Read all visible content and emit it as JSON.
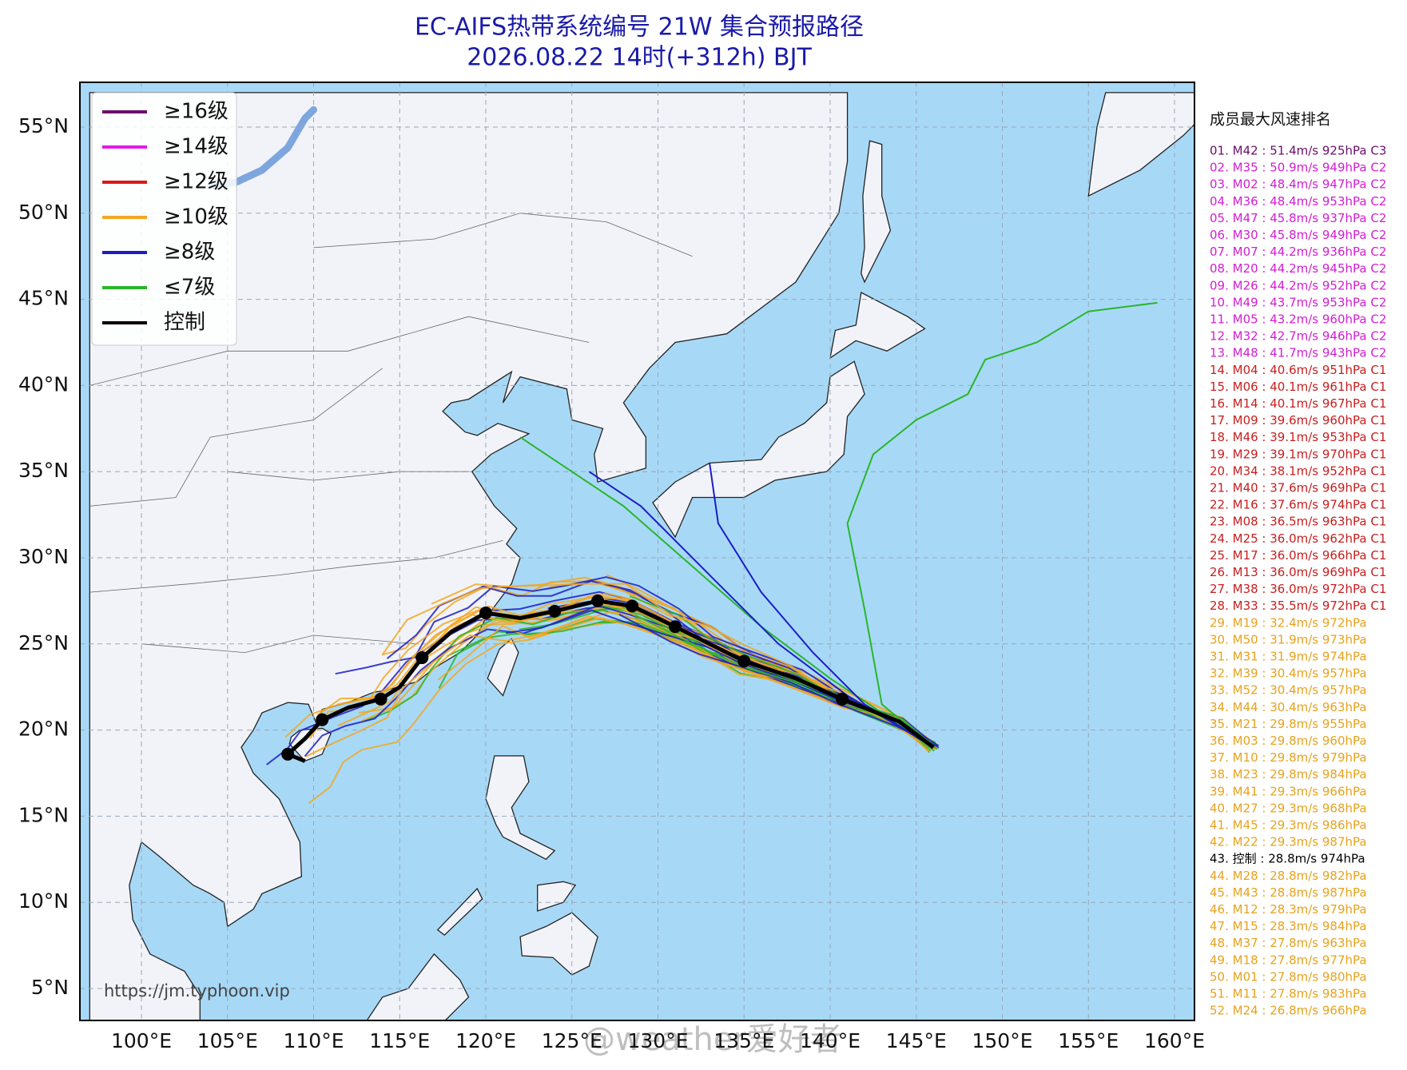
{
  "title": "EC-AIFS热带系统编号 21W 集合预报路径",
  "subtitle": "2026.08.22 14时(+312h) BJT",
  "map": {
    "lat_ticks": [
      {
        "value": 55,
        "label": "55°N"
      },
      {
        "value": 50,
        "label": "50°N"
      },
      {
        "value": 45,
        "label": "45°N"
      },
      {
        "value": 40,
        "label": "40°N"
      },
      {
        "value": 35,
        "label": "35°N"
      },
      {
        "value": 30,
        "label": "30°N"
      },
      {
        "value": 25,
        "label": "25°N"
      },
      {
        "value": 20,
        "label": "20°N"
      },
      {
        "value": 15,
        "label": "15°N"
      },
      {
        "value": 10,
        "label": "10°N"
      },
      {
        "value": 5,
        "label": "5°N"
      }
    ],
    "lon_ticks": [
      {
        "value": 100,
        "label": "100°E"
      },
      {
        "value": 105,
        "label": "105°E"
      },
      {
        "value": 110,
        "label": "110°E"
      },
      {
        "value": 115,
        "label": "115°E"
      },
      {
        "value": 120,
        "label": "120°E"
      },
      {
        "value": 125,
        "label": "125°E"
      },
      {
        "value": 130,
        "label": "130°E"
      },
      {
        "value": 135,
        "label": "135°E"
      },
      {
        "value": 140,
        "label": "140°E"
      },
      {
        "value": 145,
        "label": "145°E"
      },
      {
        "value": 150,
        "label": "150°E"
      },
      {
        "value": 155,
        "label": "155°E"
      },
      {
        "value": 160,
        "label": "160°E"
      }
    ],
    "source": "https://jm.typhoon.vip",
    "watermark": "@weather爱好者"
  },
  "legend": [
    {
      "label": "≥16级",
      "color": "#6b0f6b"
    },
    {
      "label": "≥14级",
      "color": "#e619e6"
    },
    {
      "label": "≥12级",
      "color": "#d81a1a"
    },
    {
      "label": "≥10级",
      "color": "#f2a722"
    },
    {
      "label": "≥8级",
      "color": "#1c1cc8"
    },
    {
      "label": "≤7级",
      "color": "#2ab52a"
    },
    {
      "label": "控制",
      "color": "#000000"
    }
  ],
  "ranking": {
    "title": "成员最大风速排名",
    "items": [
      {
        "text": "01. M42 : 51.4m/s 925hPa C3",
        "color": "#6b0f6b"
      },
      {
        "text": "02. M35 : 50.9m/s 949hPa C2",
        "color": "#d21ed2"
      },
      {
        "text": "03. M02 : 48.4m/s 947hPa C2",
        "color": "#d21ed2"
      },
      {
        "text": "04. M36 : 48.4m/s 953hPa C2",
        "color": "#d21ed2"
      },
      {
        "text": "05. M47 : 45.8m/s 937hPa C2",
        "color": "#d21ed2"
      },
      {
        "text": "06. M30 : 45.8m/s 949hPa C2",
        "color": "#d21ed2"
      },
      {
        "text": "07. M07 : 44.2m/s 936hPa C2",
        "color": "#d21ed2"
      },
      {
        "text": "08. M20 : 44.2m/s 945hPa C2",
        "color": "#d21ed2"
      },
      {
        "text": "09. M26 : 44.2m/s 952hPa C2",
        "color": "#d21ed2"
      },
      {
        "text": "10. M49 : 43.7m/s 953hPa C2",
        "color": "#d21ed2"
      },
      {
        "text": "11. M05 : 43.2m/s 960hPa C2",
        "color": "#d21ed2"
      },
      {
        "text": "12. M32 : 42.7m/s 946hPa C2",
        "color": "#d21ed2"
      },
      {
        "text": "13. M48 : 41.7m/s 943hPa C2",
        "color": "#d21ed2"
      },
      {
        "text": "14. M04 : 40.6m/s 951hPa C1",
        "color": "#c81e1e"
      },
      {
        "text": "15. M06 : 40.1m/s 961hPa C1",
        "color": "#c81e1e"
      },
      {
        "text": "16. M14 : 40.1m/s 967hPa C1",
        "color": "#c81e1e"
      },
      {
        "text": "17. M09 : 39.6m/s 960hPa C1",
        "color": "#c81e1e"
      },
      {
        "text": "18. M46 : 39.1m/s 953hPa C1",
        "color": "#c81e1e"
      },
      {
        "text": "19. M29 : 39.1m/s 970hPa C1",
        "color": "#c81e1e"
      },
      {
        "text": "20. M34 : 38.1m/s 952hPa C1",
        "color": "#c81e1e"
      },
      {
        "text": "21. M40 : 37.6m/s 969hPa C1",
        "color": "#c81e1e"
      },
      {
        "text": "22. M16 : 37.6m/s 974hPa C1",
        "color": "#c81e1e"
      },
      {
        "text": "23. M08 : 36.5m/s 963hPa C1",
        "color": "#c81e1e"
      },
      {
        "text": "24. M25 : 36.0m/s 962hPa C1",
        "color": "#c81e1e"
      },
      {
        "text": "25. M17 : 36.0m/s 966hPa C1",
        "color": "#c81e1e"
      },
      {
        "text": "26. M13 : 36.0m/s 969hPa C1",
        "color": "#c81e1e"
      },
      {
        "text": "27. M38 : 36.0m/s 972hPa C1",
        "color": "#c81e1e"
      },
      {
        "text": "28. M33 : 35.5m/s 972hPa C1",
        "color": "#c81e1e"
      },
      {
        "text": "29. M19 : 32.4m/s 972hPa",
        "color": "#e8a21e"
      },
      {
        "text": "30. M50 : 31.9m/s 973hPa",
        "color": "#e8a21e"
      },
      {
        "text": "31. M31 : 31.9m/s 974hPa",
        "color": "#e8a21e"
      },
      {
        "text": "32. M39 : 30.4m/s 957hPa",
        "color": "#e8a21e"
      },
      {
        "text": "33. M52 : 30.4m/s 957hPa",
        "color": "#e8a21e"
      },
      {
        "text": "34. M44 : 30.4m/s 963hPa",
        "color": "#e8a21e"
      },
      {
        "text": "35. M21 : 29.8m/s 955hPa",
        "color": "#e8a21e"
      },
      {
        "text": "36. M03 : 29.8m/s 960hPa",
        "color": "#e8a21e"
      },
      {
        "text": "37. M10 : 29.8m/s 979hPa",
        "color": "#e8a21e"
      },
      {
        "text": "38. M23 : 29.8m/s 984hPa",
        "color": "#e8a21e"
      },
      {
        "text": "39. M41 : 29.3m/s 966hPa",
        "color": "#e8a21e"
      },
      {
        "text": "40. M27 : 29.3m/s 968hPa",
        "color": "#e8a21e"
      },
      {
        "text": "41. M45 : 29.3m/s 986hPa",
        "color": "#e8a21e"
      },
      {
        "text": "42. M22 : 29.3m/s 987hPa",
        "color": "#e8a21e"
      },
      {
        "text": "43. 控制 : 28.8m/s 974hPa",
        "color": "#000000"
      },
      {
        "text": "44. M28 : 28.8m/s 982hPa",
        "color": "#e8a21e"
      },
      {
        "text": "45. M43 : 28.8m/s 987hPa",
        "color": "#e8a21e"
      },
      {
        "text": "46. M12 : 28.3m/s 979hPa",
        "color": "#e8a21e"
      },
      {
        "text": "47. M15 : 28.3m/s 984hPa",
        "color": "#e8a21e"
      },
      {
        "text": "48. M37 : 27.8m/s 963hPa",
        "color": "#e8a21e"
      },
      {
        "text": "49. M18 : 27.8m/s 977hPa",
        "color": "#e8a21e"
      },
      {
        "text": "50. M01 : 27.8m/s 980hPa",
        "color": "#e8a21e"
      },
      {
        "text": "51. M11 : 27.8m/s 983hPa",
        "color": "#e8a21e"
      },
      {
        "text": "52. M24 : 26.8m/s 966hPa",
        "color": "#e8a21e"
      }
    ]
  }
}
